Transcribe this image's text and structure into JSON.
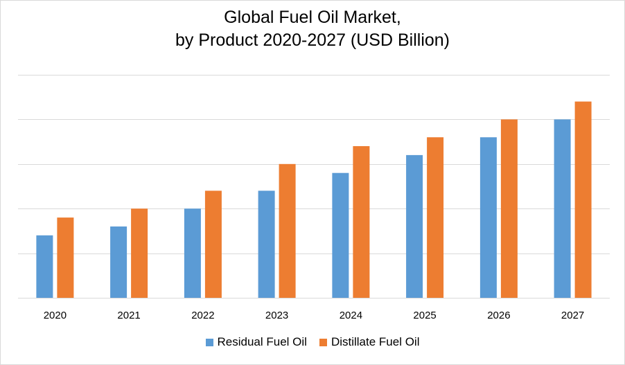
{
  "chart_data": {
    "type": "bar",
    "title_lines": [
      "Global Fuel Oil Market,",
      "by Product 2020-2027 (USD Billion)"
    ],
    "xlabel": "",
    "ylabel": "",
    "categories": [
      "2020",
      "2021",
      "2022",
      "2023",
      "2024",
      "2025",
      "2026",
      "2027"
    ],
    "series": [
      {
        "name": "Residual Fuel Oil",
        "color": "#5b9bd5",
        "values": [
          1.4,
          1.6,
          2.0,
          2.4,
          2.8,
          3.2,
          3.6,
          4.0
        ]
      },
      {
        "name": "Distillate Fuel Oil",
        "color": "#ed7d31",
        "values": [
          1.8,
          2.0,
          2.4,
          3.0,
          3.4,
          3.6,
          4.0,
          4.4
        ]
      }
    ],
    "ylim": [
      0,
      5
    ],
    "y_ticks_labeled": false,
    "grid": true,
    "legend_position": "bottom"
  }
}
